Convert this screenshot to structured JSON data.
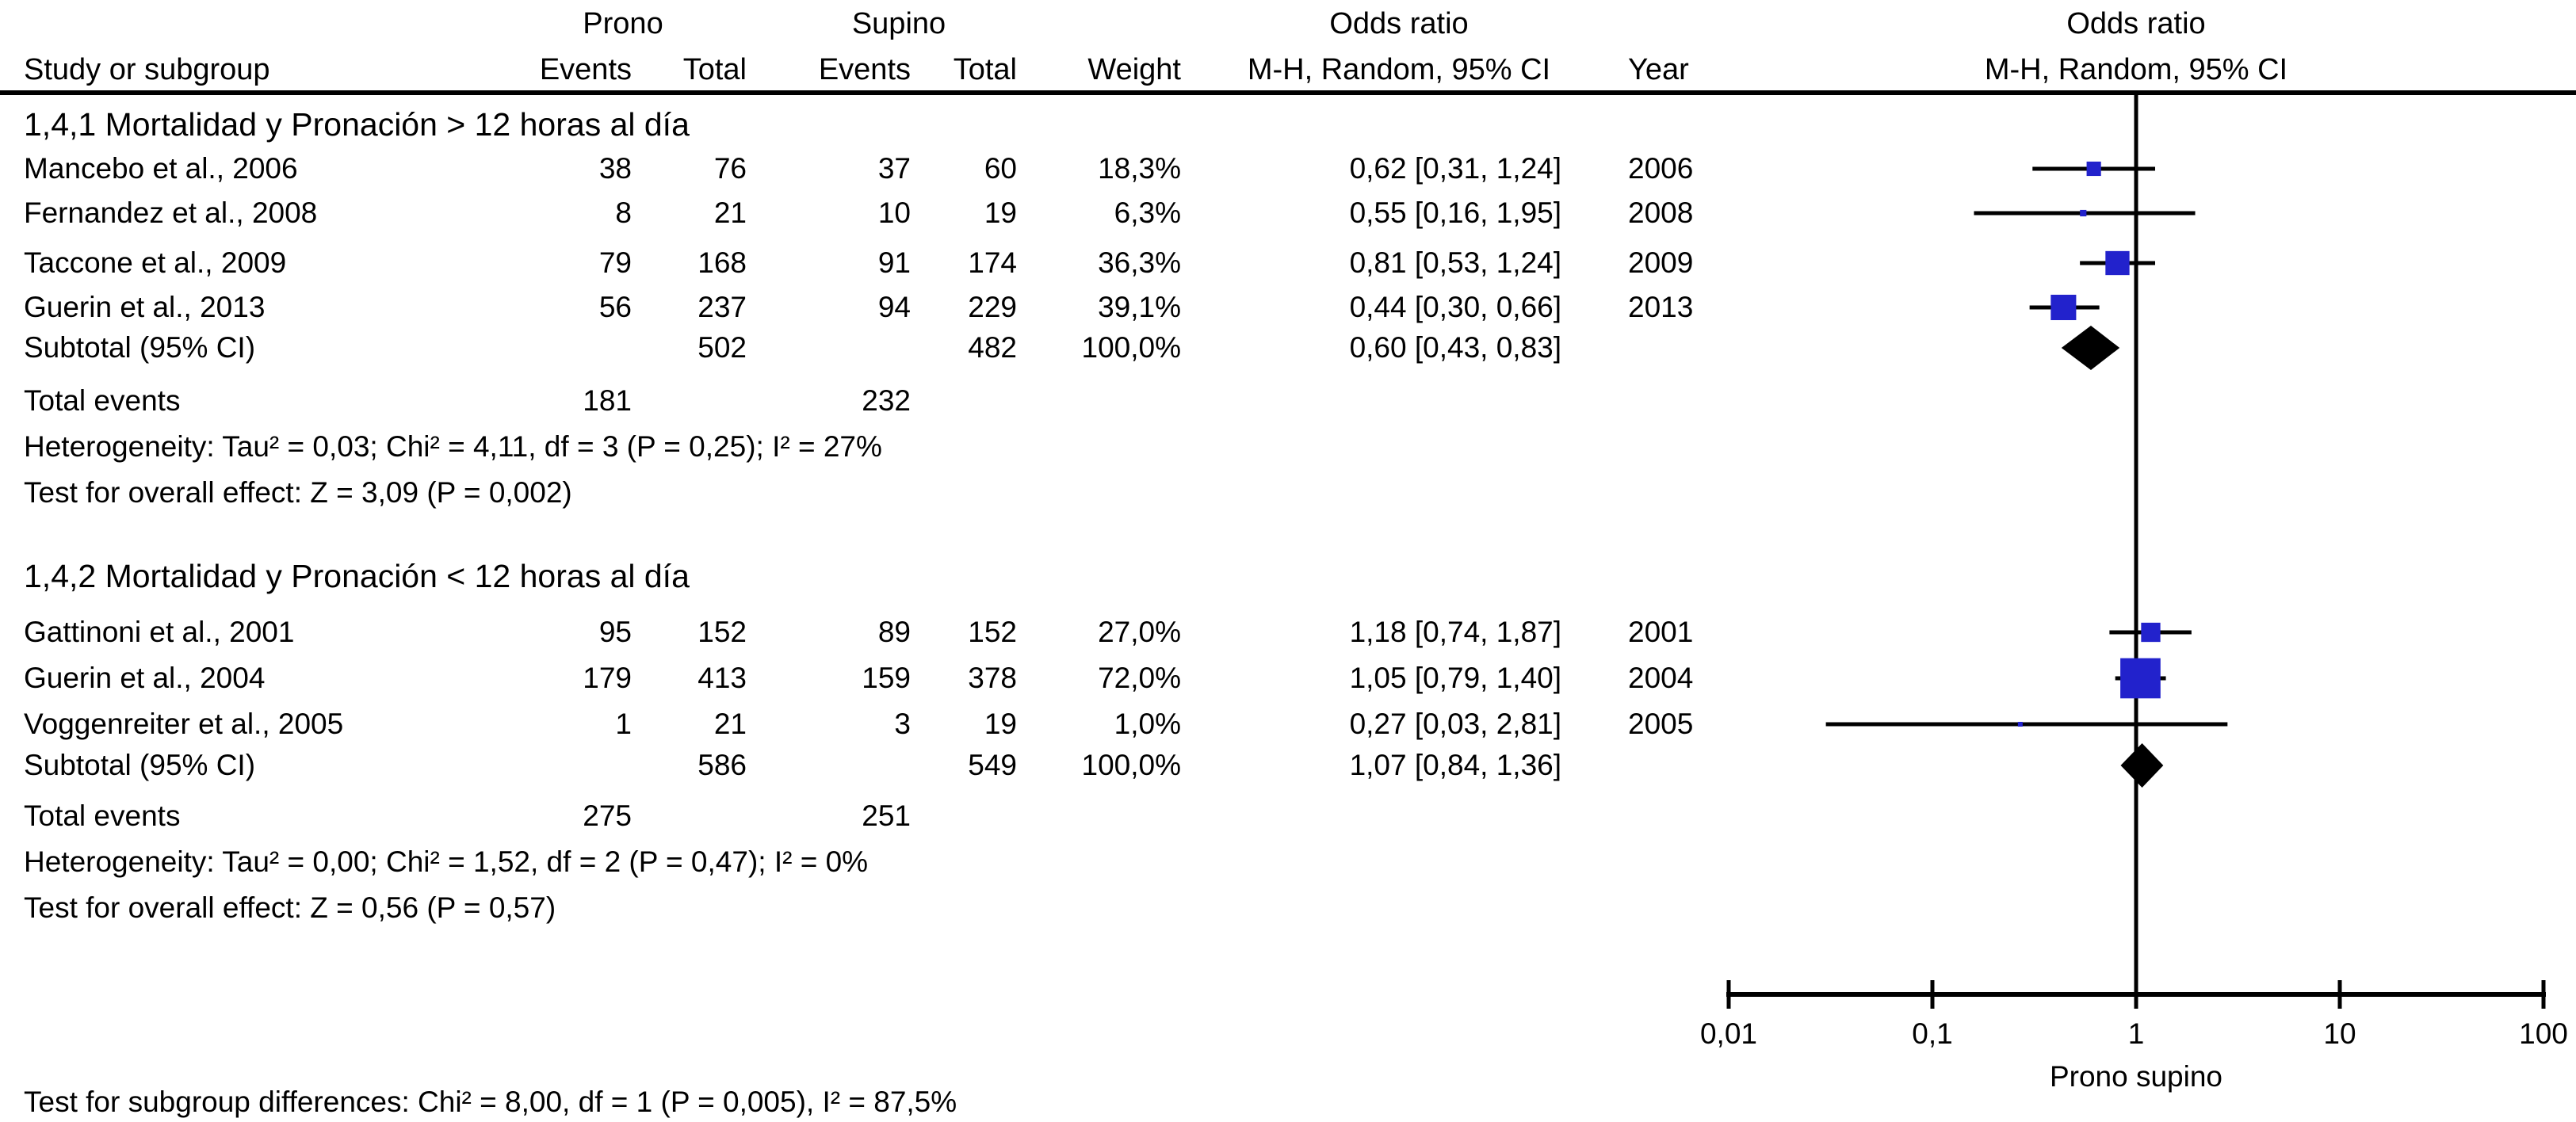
{
  "header": {
    "col_study": "Study or subgroup",
    "group1_label": "Prono",
    "group2_label": "Supino",
    "col_events": "Events",
    "col_total": "Total",
    "col_weight": "Weight",
    "col_or": "Odds ratio",
    "col_method": "M-H, Random, 95% CI",
    "col_year": "Year",
    "plot_title": "Odds ratio",
    "plot_subtitle": "M-H, Random, 95% CI"
  },
  "axis": {
    "ticks": [
      "0,01",
      "0,1",
      "1",
      "10",
      "100"
    ],
    "tick_values": [
      0.01,
      0.1,
      1,
      10,
      100
    ],
    "label": "Prono supino",
    "scale": "log"
  },
  "colors": {
    "marker_blue": "#2222CC",
    "diamond_black": "#000000",
    "line_black": "#000000"
  },
  "footer": {
    "subgroup_diff": "Test for subgroup differences: Chi² = 8,00, df = 1 (P = 0,005), I² = 87,5%"
  },
  "chart_data": {
    "type": "scatter",
    "variant": "forest-plot",
    "effect_measure": "Odds ratio, M-H, Random, 95% CI",
    "x_scale": "log",
    "x_ticks": [
      0.01,
      0.1,
      1,
      10,
      100
    ],
    "xlabel": "Prono supino",
    "groups": [
      {
        "title": "1,4,1 Mortalidad y Pronación > 12 horas al día",
        "studies": [
          {
            "study": "Mancebo et al.,  2006",
            "events1": "38",
            "total1": "76",
            "events2": "37",
            "total2": "60",
            "weight": "18,3%",
            "ci_text": "0,62 [0,31, 1,24]",
            "year": "2006",
            "or": 0.62,
            "lo": 0.31,
            "hi": 1.24,
            "weight_pct": 18.3
          },
          {
            "study": "Fernandez et al.,  2008",
            "events1": "8",
            "total1": "21",
            "events2": "10",
            "total2": "19",
            "weight": "6,3%",
            "ci_text": "0,55 [0,16, 1,95]",
            "year": "2008",
            "or": 0.55,
            "lo": 0.16,
            "hi": 1.95,
            "weight_pct": 6.3
          },
          {
            "study": "Taccone et al.,  2009",
            "events1": "79",
            "total1": "168",
            "events2": "91",
            "total2": "174",
            "weight": "36,3%",
            "ci_text": "0,81 [0,53, 1,24]",
            "year": "2009",
            "or": 0.81,
            "lo": 0.53,
            "hi": 1.24,
            "weight_pct": 36.3
          },
          {
            "study": "Guerin et al.,  2013",
            "events1": "56",
            "total1": "237",
            "events2": "94",
            "total2": "229",
            "weight": "39,1%",
            "ci_text": "0,44 [0,30, 0,66]",
            "year": "2013",
            "or": 0.44,
            "lo": 0.3,
            "hi": 0.66,
            "weight_pct": 39.1
          }
        ],
        "subtotal": {
          "label": "Subtotal (95% CI)",
          "total1": "502",
          "total2": "482",
          "weight": "100,0%",
          "ci_text": "0,60 [0,43, 0,83]",
          "or": 0.6,
          "lo": 0.43,
          "hi": 0.83
        },
        "total_events": {
          "label": "Total events",
          "events1": "181",
          "events2": "232"
        },
        "heterogeneity": "Heterogeneity: Tau² = 0,03; Chi² = 4,11, df = 3 (P = 0,25); I² = 27%",
        "overall": "Test for overall effect: Z = 3,09 (P = 0,002)"
      },
      {
        "title": "1,4,2 Mortalidad y Pronación < 12 horas al día",
        "studies": [
          {
            "study": "Gattinoni et al.,  2001",
            "events1": "95",
            "total1": "152",
            "events2": "89",
            "total2": "152",
            "weight": "27,0%",
            "ci_text": "1,18 [0,74, 1,87]",
            "year": "2001",
            "or": 1.18,
            "lo": 0.74,
            "hi": 1.87,
            "weight_pct": 27.0
          },
          {
            "study": "Guerin et al.,  2004",
            "events1": "179",
            "total1": "413",
            "events2": "159",
            "total2": "378",
            "weight": "72,0%",
            "ci_text": "1,05 [0,79, 1,40]",
            "year": "2004",
            "or": 1.05,
            "lo": 0.79,
            "hi": 1.4,
            "weight_pct": 72.0
          },
          {
            "study": "Voggenreiter et al.,  2005",
            "events1": "1",
            "total1": "21",
            "events2": "3",
            "total2": "19",
            "weight": "1,0%",
            "ci_text": "0,27 [0,03, 2,81]",
            "year": "2005",
            "or": 0.27,
            "lo": 0.03,
            "hi": 2.81,
            "weight_pct": 1.0
          }
        ],
        "subtotal": {
          "label": "Subtotal (95% CI)",
          "total1": "586",
          "total2": "549",
          "weight": "100,0%",
          "ci_text": "1,07 [0,84, 1,36]",
          "or": 1.07,
          "lo": 0.84,
          "hi": 1.36
        },
        "total_events": {
          "label": "Total events",
          "events1": "275",
          "events2": "251"
        },
        "heterogeneity": "Heterogeneity: Tau² = 0,00; Chi² = 1,52, df = 2 (P = 0,47); I² = 0%",
        "overall": "Test for overall effect: Z = 0,56 (P = 0,57)"
      }
    ]
  }
}
